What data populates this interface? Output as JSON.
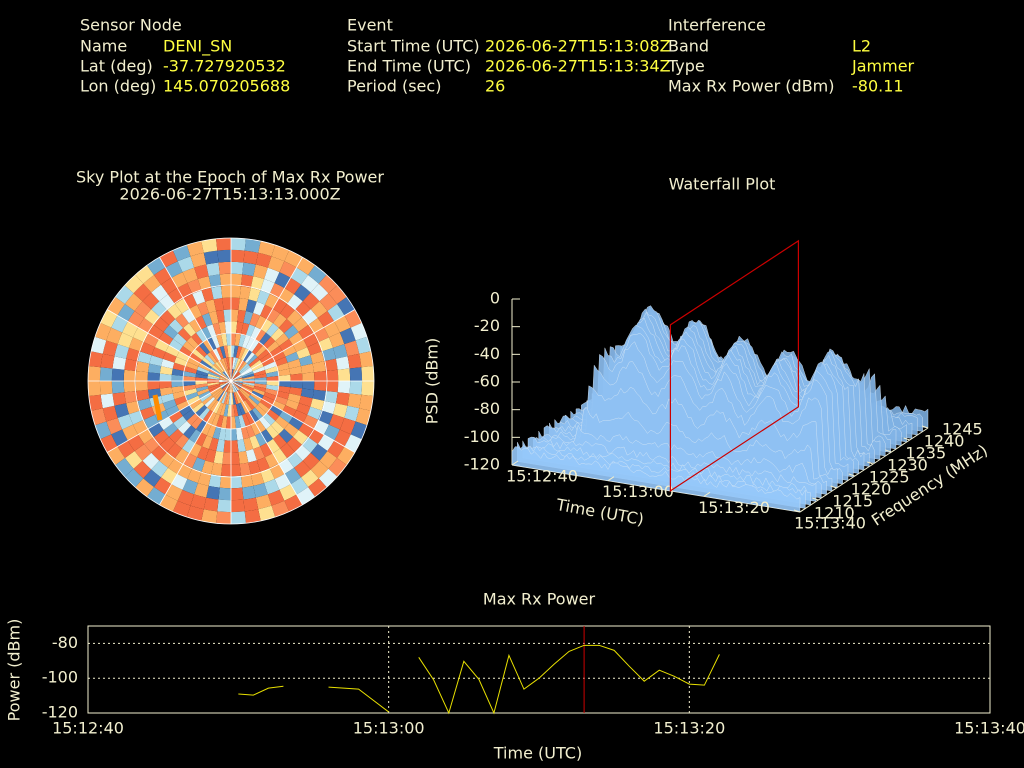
{
  "header": {
    "sensor": {
      "title": "Sensor Node",
      "rows": [
        [
          "Name",
          "DENI_SN"
        ],
        [
          "Lat (deg)",
          "-37.727920532"
        ],
        [
          "Lon (deg)",
          "145.070205688"
        ]
      ]
    },
    "event": {
      "title": "Event",
      "rows": [
        [
          "Start Time (UTC)",
          "2026-06-27T15:13:08Z"
        ],
        [
          "End Time (UTC)",
          "2026-06-27T15:13:34Z"
        ],
        [
          "Period (sec)",
          "26"
        ]
      ]
    },
    "interference": {
      "title": "Interference",
      "rows": [
        [
          "Band",
          "L2"
        ],
        [
          "Type",
          "Jammer"
        ],
        [
          "Max Rx Power (dBm)",
          "-80.11"
        ]
      ]
    }
  },
  "chart_data": [
    {
      "type": "polar",
      "title": "Sky Plot at the Epoch of Max Rx Power",
      "subtitle": "2026-06-27T15:13:13.000Z"
    },
    {
      "type": "surface3d",
      "title": "Waterfall Plot",
      "xlabel": "Time (UTC)",
      "ylabel": "Frequency (MHz)",
      "zlabel": "PSD (dBm)",
      "xlim": [
        "15:12:40",
        "15:13:40"
      ],
      "xticks": [
        "15:12:40",
        "15:13:00",
        "15:13:20",
        "15:13:40"
      ],
      "ylim": [
        1210,
        1245
      ],
      "yticks": [
        1210,
        1215,
        1220,
        1225,
        1230,
        1235,
        1240,
        1245
      ],
      "zlim": [
        -120,
        0
      ],
      "zticks": [
        -120,
        -100,
        -80,
        -60,
        -40,
        -20,
        0
      ],
      "plane_color": "#cc0000"
    },
    {
      "type": "line",
      "title": "Max Rx Power",
      "xlabel": "Time (UTC)",
      "ylabel": "Power (dBm)",
      "x": [
        "15:12:50",
        "15:12:51",
        "15:12:52",
        "15:12:53",
        "15:12:55",
        "15:12:56",
        "15:12:58",
        "15:13:00",
        "15:13:01",
        "15:13:02",
        "15:13:03",
        "15:13:04",
        "15:13:05",
        "15:13:06",
        "15:13:07",
        "15:13:08",
        "15:13:09",
        "15:13:10",
        "15:13:11",
        "15:13:12",
        "15:13:13",
        "15:13:14",
        "15:13:15",
        "15:13:16",
        "15:13:17",
        "15:13:18",
        "15:13:19",
        "15:13:20",
        "15:13:21",
        "15:13:22"
      ],
      "series": [
        {
          "name": "Max Rx Power",
          "color": "#e8e000",
          "values": [
            -109.1,
            -109.7,
            -105.7,
            -104.6,
            null,
            -105.1,
            -106.3,
            -119.4,
            null,
            -88,
            -101.1,
            -120,
            -90.3,
            -100.6,
            -120,
            -86.9,
            -106.3,
            -100,
            -92,
            -84.6,
            -81.1,
            -81.1,
            -84,
            -93.1,
            -101.7,
            -95.4,
            -98.9,
            -103.4,
            -104,
            -86.3
          ]
        }
      ],
      "xlim": [
        "15:12:40",
        "15:13:40"
      ],
      "xticks": [
        "15:12:40",
        "15:13:00",
        "15:13:20",
        "15:13:40"
      ],
      "ylim": [
        -120,
        -70
      ],
      "yticks": [
        -120,
        -100,
        -80
      ],
      "grid": true,
      "marker_x": "15:13:13",
      "marker_color": "#cc0000"
    }
  ]
}
